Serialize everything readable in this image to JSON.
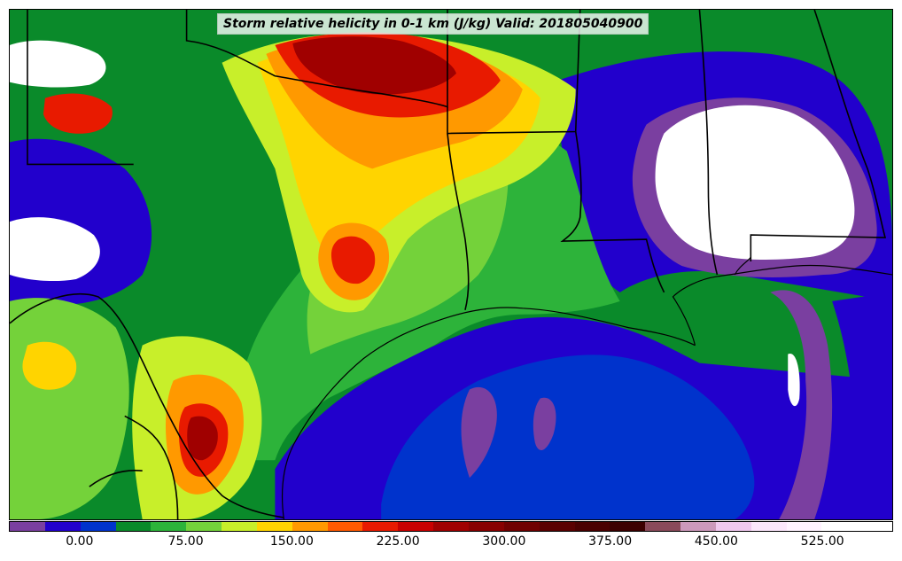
{
  "title": "Storm relative helicity in 0-1 km (J/kg) Valid: 201805040900",
  "colorbar": {
    "segments": [
      "#7a3fa0",
      "#2200cc",
      "#0033cc",
      "#0a8a2a",
      "#2db33a",
      "#74d23a",
      "#c8ef2a",
      "#ffd400",
      "#ff9900",
      "#ff5a00",
      "#e81a00",
      "#c80000",
      "#a00000",
      "#880000",
      "#700000",
      "#5a0000",
      "#4a0000",
      "#3c0000",
      "#8a4a5a",
      "#cc99bb",
      "#f0c8ee",
      "#fbe6fb",
      "#fff3ff",
      "#ffffff",
      "#ffffff"
    ],
    "tick_labels": [
      "0.00",
      "75.00",
      "150.00",
      "225.00",
      "300.00",
      "375.00",
      "450.00",
      "525.00"
    ]
  },
  "map": {
    "colors": {
      "deep_blue": "#0033cc",
      "indigo": "#2200cc",
      "purple": "#7a3fa0",
      "dark_green": "#0a8a2a",
      "green": "#2db33a",
      "light_green": "#74d23a",
      "yellow_green": "#c8ef2a",
      "yellow": "#ffd400",
      "orange": "#ff9900",
      "red_orange": "#ff5a00",
      "red": "#e81a00",
      "dark_red": "#a00000",
      "white": "#ffffff"
    }
  }
}
